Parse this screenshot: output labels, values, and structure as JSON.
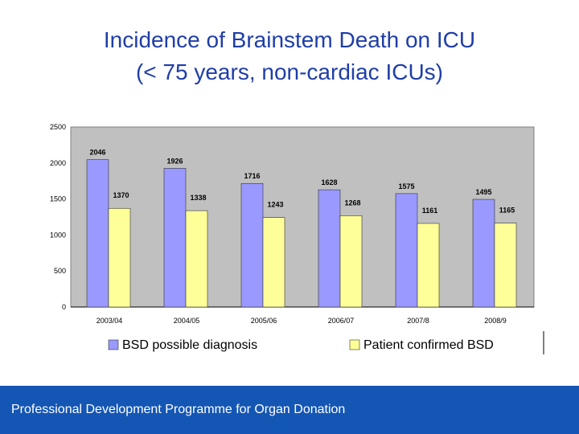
{
  "slide": {
    "title_line1": "Incidence of Brainstem Death on ICU",
    "title_line2": "(< 75 years, non-cardiac ICUs)",
    "footer": "Professional Development Programme for Organ Donation"
  },
  "colors": {
    "title": "#1f3ea8",
    "plot_background": "#c0c0c0",
    "series_bsd_possible": "#9999ff",
    "series_patient_confirmed": "#ffff99",
    "footer_background": "#1456b4"
  },
  "chart_data": {
    "type": "bar",
    "categories": [
      "2003/04",
      "2004/05",
      "2005/06",
      "2006/07",
      "2007/8",
      "2008/9"
    ],
    "series": [
      {
        "name": "BSD possible diagnosis",
        "values": [
          2046,
          1926,
          1716,
          1628,
          1575,
          1495
        ]
      },
      {
        "name": "Patient confirmed BSD",
        "values": [
          1370,
          1338,
          1243,
          1268,
          1161,
          1165
        ]
      }
    ],
    "yticks": [
      0,
      500,
      1000,
      1500,
      2000,
      2500
    ],
    "ylim": [
      0,
      2500
    ],
    "data_labels": true,
    "grid": false,
    "legend_position": "bottom"
  }
}
